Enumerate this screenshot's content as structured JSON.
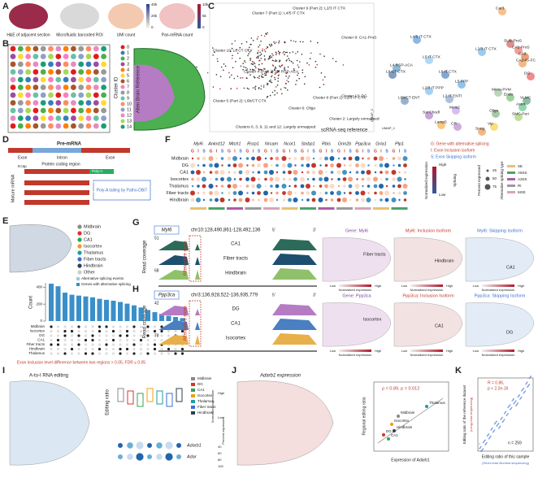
{
  "panel_letters": [
    "A",
    "B",
    "C",
    "D",
    "E",
    "F",
    "G",
    "H",
    "I",
    "J",
    "K"
  ],
  "panel_a": {
    "captions": [
      "H&E of adjacent section",
      "Microfluidic barcoded ROI",
      "UMI count",
      "Pan-mRNA count"
    ],
    "umi_scale": [
      "40k",
      "20k",
      "0"
    ],
    "pan_scale": [
      "10k",
      "5k",
      "0"
    ]
  },
  "panel_b": {
    "legend_title": "Cluster ID",
    "clusters": [
      "0",
      "1",
      "2",
      "3",
      "4",
      "5",
      "6",
      "7",
      "8",
      "9",
      "10",
      "11",
      "12",
      "13",
      "14"
    ],
    "reference": "Allen Brain Reference"
  },
  "panel_c": {
    "umap_labels": [
      "Cluster 7 (Part 1): L4/5 IT CTX",
      "Cluster 9 (Part 2): L2/3 IT CTX",
      "Cluster 8: CA1-ProS",
      "Cluster 10: L6 CT CTX",
      "Cluster 4 (Part 2): L4 RSP-ACA",
      "Cluster 9 (Part 1): L2/3 IT CTX",
      "Cluster 5 (Part 2): L6b/CT CTX",
      "Cluster 6: Oligo",
      "Cluster 13: DG",
      "Cluster 2: Largely unmapped",
      "Clusters 0, 3, 9, 11 and 12: Largely unmapped"
    ],
    "reference_label": "scRNA-seq reference",
    "axis_labels": [
      "UMAP_1",
      "UMAP_2"
    ],
    "cell_types": [
      "Car3",
      "L4/5 IT CTX",
      "L2/3 IT CTX",
      "L5 IT CTX",
      "L6 IT CTX",
      "SUB-ProS",
      "CA1-ProS",
      "CA3",
      "CA2-IG-FC",
      "L4 RSP-ACA",
      "L6 CT CTX",
      "DG",
      "L5 PPP",
      "L2/3 IT PPP",
      "L6b/CT ENT",
      "L2 IT ENTl",
      "Micro-PVM",
      "Endo",
      "VLMC",
      "Astro",
      "SMC-Peri",
      "Oligo",
      "Sst Chodl",
      "Meis2",
      "CR",
      "Lamp5",
      "Vip",
      "Sncg"
    ]
  },
  "panel_d": {
    "pre_mrna": "Pre-mRNA",
    "exon": "Exon",
    "intron": "Intron",
    "protein_coding": "Protein coding region",
    "cap": "5'cap",
    "mature": "Mature mRNA",
    "poly_a": "Poly-A",
    "tailing": "Poly-A tailing by Patho-DBiT"
  },
  "panel_e": {
    "regions": [
      "Midbrain",
      "DG",
      "CA1",
      "Isocortex",
      "Thalamus",
      "Fiber tracts",
      "Hindbrain",
      "Other"
    ],
    "region_colors": [
      "#8a8a8a",
      "#e0302a",
      "#31a354",
      "#f39c12",
      "#1b9e9e",
      "#3b6fd1",
      "#2f3e4f",
      "#cccccc"
    ],
    "bar_legend": [
      "Alternative splicing events",
      "Genes with alternative splicing"
    ],
    "count_label": "Count",
    "matrix_rows": [
      "Midbrain",
      "Isocortex",
      "DG",
      "CA1",
      "Fiber tracts",
      "Hindbrain",
      "Thalamus"
    ],
    "footnote": "Exon inclusion level difference between two regions > 0.05, FDR ≤ 0.05",
    "upset": {
      "type": "bar",
      "values": [
        440,
        410,
        335,
        310,
        300,
        290,
        280,
        262,
        250,
        240,
        225,
        205,
        185,
        160,
        130,
        105,
        85,
        62,
        48,
        35
      ],
      "color": "#3a8fc9",
      "ylim": [
        0,
        450
      ],
      "yticks": [
        0,
        200,
        400
      ]
    }
  },
  "panel_f": {
    "genes": [
      "Myl6",
      "Ankrd12",
      "Mtch1",
      "Rsrp1",
      "Nrcam",
      "Ncor1",
      "Stxbp1",
      "Rbis",
      "Grin2b",
      "Ppp3ca",
      "Gria1",
      "Plp1"
    ],
    "isoform_letters": [
      "G",
      "I",
      "S"
    ],
    "rows": [
      "Midbrain",
      "DG",
      "CA1",
      "Isocortex",
      "Thalamus",
      "Fiber tracts",
      "Hindbrain"
    ],
    "legend": [
      "G: Gene with alternative splicing",
      "I: Exon Inclusion isoform",
      "S: Exon Skipping isoform"
    ],
    "expression_title": "Normalized expression",
    "splicing_title": "Splicing",
    "high": "High",
    "low": "Low",
    "percent_title": "Percent expressed",
    "percent_levels": [
      "25",
      "50",
      "75"
    ],
    "type_title": "Alternative splicing type",
    "types": [
      "SE",
      "A5SS",
      "A3SS",
      "RI",
      "MXE"
    ],
    "type_colors": [
      "#e8c170",
      "#4aa36a",
      "#b05aa8",
      "#9a9a9a",
      "#d9a3b8"
    ]
  },
  "panel_g": {
    "gene": "Myl6",
    "locus": "chr10:128,490,861-128,492,136",
    "five": "5'",
    "three": "3'",
    "read_coverage": "Read coverage",
    "alt_exon": "Alternative exon",
    "tracks": [
      "CA1",
      "Fiber tracts",
      "Hindbrain"
    ],
    "scale_top": "51",
    "scale_bottom": "68",
    "maps": [
      "Gene: Myl6",
      "Myl6: Inclusion Isoform",
      "Myl6: Skipping Isoform"
    ],
    "map_labels": [
      "Fiber tracts",
      "Hindbrain",
      "CA1"
    ],
    "colorbar": "Normalized expression",
    "low": "Low",
    "high": "High"
  },
  "panel_h": {
    "gene": "Ppp3ca",
    "locus": "chr3:136,928,522-136,935,779",
    "five": "5'",
    "three": "3'",
    "read_coverage": "Read coverage",
    "alt_exon": "Alternative exon",
    "tracks": [
      "DG",
      "CA1",
      "Isocortex"
    ],
    "scale_top": "42",
    "scale_bottom": "78",
    "maps": [
      "Gene: Ppp3ca",
      "Ppp3ca: Inclusion Isoform",
      "Ppp3ca: Skipping Isoform"
    ],
    "map_labels": [
      "Isocortex",
      "CA1",
      "DG"
    ],
    "colorbar": "Normalized expression",
    "low": "Low",
    "high": "High"
  },
  "panel_i": {
    "title": "A-to-I RNA editing",
    "y_label": "Editing ratio",
    "genes": [
      "Adarb1",
      "Adar"
    ],
    "high": "High",
    "low": "Low",
    "expression_title": "Normalized expression",
    "percent_title": "Percent expressed",
    "percent_levels": [
      "40",
      "60",
      "80",
      "100"
    ]
  },
  "panel_j": {
    "title": "Adarb1 expression",
    "stats": "ρ = 0.89, p = 0.012",
    "y_label": "Regional editing ratio",
    "x_label": "Expression of Adarb1",
    "points": [
      "Thalamus",
      "Midbrain",
      "Isocortex",
      "DG",
      "CA1",
      "Hindbrain"
    ]
  },
  "panel_k": {
    "r": "R = 0.86,",
    "p": "p < 2.2e-16",
    "n": "n = 259",
    "x_label": "Editing ratio of this sample",
    "x_sub": "(Short-read Illumina sequencing)",
    "y_label": "Editing ratio of the reference dataset",
    "y_sub": "(Long-read sequencing)"
  }
}
